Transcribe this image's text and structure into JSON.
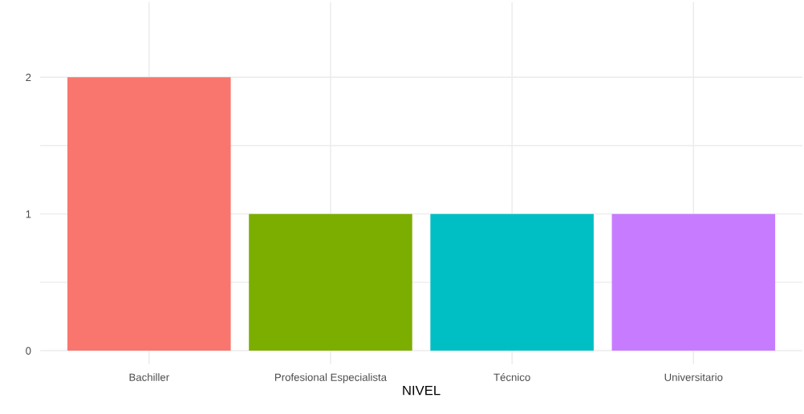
{
  "chart_data": {
    "type": "bar",
    "xlabel": "NIVEL",
    "categories": [
      "Bachiller",
      "Profesional Especialista",
      "Técnico",
      "Universitario"
    ],
    "values": [
      2,
      1,
      1,
      1
    ],
    "colors": [
      "#f8766d",
      "#7cae00",
      "#00bfc4",
      "#c77cff"
    ],
    "ylim": [
      -0.1,
      2.55
    ],
    "yticks": [
      0,
      {
        "value": 0.5,
        "label": null
      },
      1,
      {
        "value": 1.5,
        "label": null
      },
      2
    ],
    "grid": true
  }
}
